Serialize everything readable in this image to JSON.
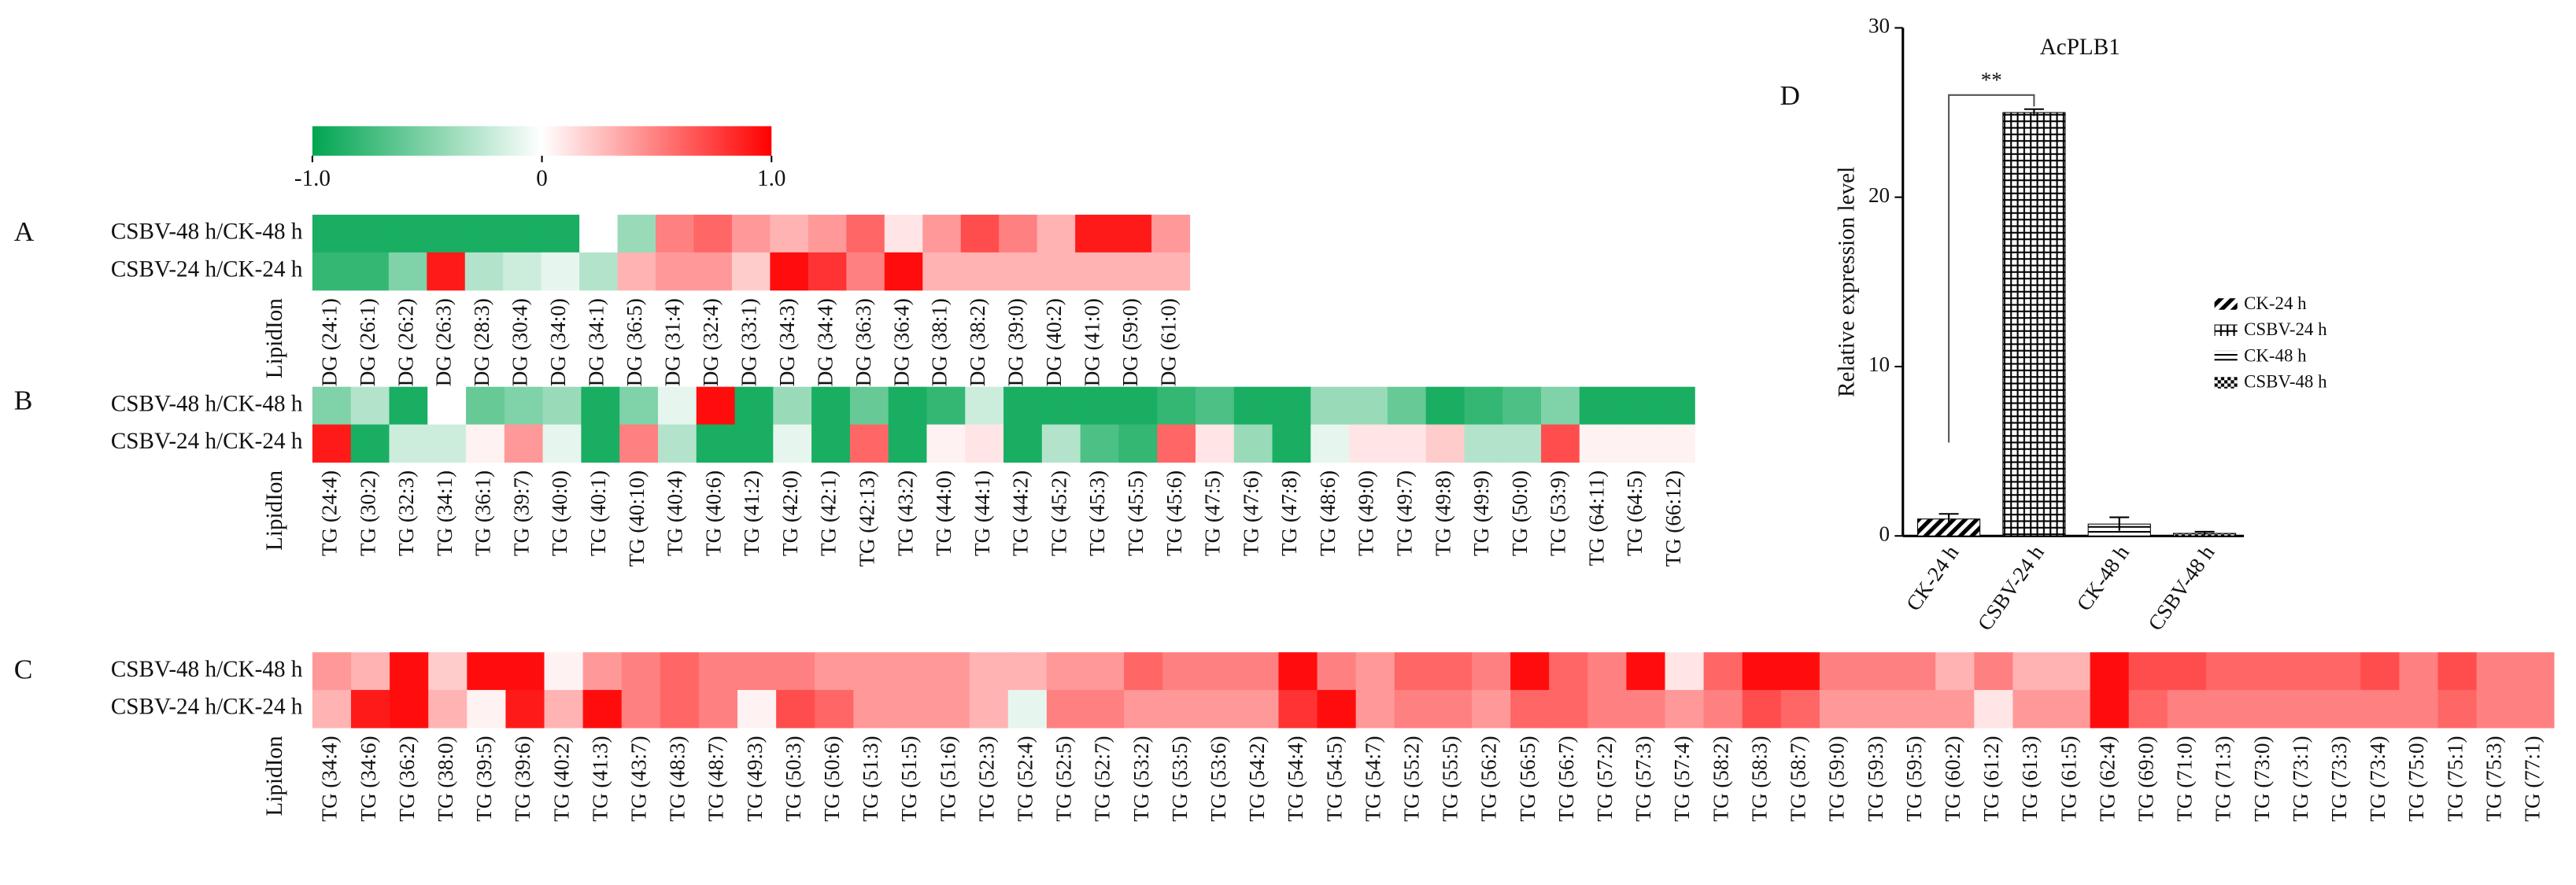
{
  "chart_data": [
    {
      "type": "heatmap",
      "panel": "A",
      "xlabel": "LipidIon",
      "rows": [
        "CSBV-48 h/CK-48 h",
        "CSBV-24 h/CK-24 h"
      ],
      "categories": [
        "DG (24:1)",
        "DG (26:1)",
        "DG (26:2)",
        "DG (26:3)",
        "DG (28:3)",
        "DG (30:4)",
        "DG (34:0)",
        "DG (34:1)",
        "DG (36:5)",
        "DG (31:4)",
        "DG (32:4)",
        "DG (33:1)",
        "DG (34:3)",
        "DG (34:4)",
        "DG (36:3)",
        "DG (36:4)",
        "DG (38:1)",
        "DG (38:2)",
        "DG (39:0)",
        "DG (40:2)",
        "DG (41:0)",
        "DG (59:0)",
        "DG (61:0)"
      ],
      "values": [
        [
          -0.9,
          -0.9,
          -0.9,
          -0.9,
          -0.9,
          -0.9,
          -0.9,
          0,
          -0.4,
          0.5,
          0.6,
          0.4,
          0.3,
          0.4,
          0.6,
          0.1,
          0.4,
          0.7,
          0.5,
          0.3,
          0.9,
          0.9,
          0.4
        ],
        [
          -0.8,
          -0.8,
          -0.5,
          0.9,
          -0.3,
          -0.2,
          -0.1,
          -0.3,
          0.3,
          0.4,
          0.4,
          0.2,
          0.95,
          0.8,
          0.5,
          0.95,
          0.3,
          0.3,
          0.3,
          0.3,
          0.3,
          0.3,
          0.3
        ]
      ],
      "colorbar": {
        "colors": [
          "#00a550",
          "#ffffff",
          "#ff0000"
        ],
        "lim": [
          -1,
          1
        ],
        "ticks": [
          {
            "value": -1,
            "label": "-1.0"
          },
          0,
          {
            "value": 1,
            "label": "1.0"
          }
        ]
      }
    },
    {
      "type": "heatmap",
      "panel": "B",
      "xlabel": "LipidIon",
      "rows": [
        "CSBV-48 h/CK-48 h",
        "CSBV-24 h/CK-24 h"
      ],
      "categories": [
        "TG (24:4)",
        "TG (30:2)",
        "TG (32:3)",
        "TG (34:1)",
        "TG (36:1)",
        "TG (39:7)",
        "TG (40:0)",
        "TG (40:1)",
        "TG (40:10)",
        "TG (40:4)",
        "TG (40:6)",
        "TG (41:2)",
        "TG (42:0)",
        "TG (42:1)",
        "TG (42:13)",
        "TG (43:2)",
        "TG (44:0)",
        "TG (44:1)",
        "TG (44:2)",
        "TG (45:2)",
        "TG (45:3)",
        "TG (45:5)",
        "TG (45:6)",
        "TG (47:5)",
        "TG (47:6)",
        "TG (47:8)",
        "TG (48:6)",
        "TG (49:0)",
        "TG (49:7)",
        "TG (49:8)",
        "TG (49:9)",
        "TG (50:0)",
        "TG (53:9)",
        "TG (64:11)",
        "TG (64:5)",
        "TG (66:12)"
      ],
      "values": [
        [
          -0.5,
          -0.3,
          -0.9,
          0,
          -0.6,
          -0.5,
          -0.4,
          -0.9,
          -0.5,
          -0.1,
          0.95,
          -0.9,
          -0.4,
          -0.9,
          -0.6,
          -0.9,
          -0.8,
          -0.2,
          -0.9,
          -0.9,
          -0.9,
          -0.9,
          -0.8,
          -0.7,
          -0.9,
          -0.9,
          -0.4,
          -0.4,
          -0.6,
          -0.9,
          -0.8,
          -0.7,
          -0.5,
          -0.9,
          -0.9,
          -0.9
        ],
        [
          0.9,
          -0.9,
          -0.2,
          -0.2,
          0.05,
          0.4,
          -0.1,
          -0.9,
          0.5,
          -0.3,
          -0.9,
          -0.9,
          -0.1,
          -0.9,
          0.6,
          -0.9,
          0.05,
          0.1,
          -0.9,
          -0.3,
          -0.7,
          -0.8,
          0.6,
          0.1,
          -0.4,
          -0.9,
          -0.1,
          0.1,
          0.1,
          0.2,
          -0.3,
          -0.3,
          0.7,
          0.05,
          0.05,
          0.05
        ]
      ]
    },
    {
      "type": "heatmap",
      "panel": "C",
      "xlabel": "LipidIon",
      "rows": [
        "CSBV-48 h/CK-48 h",
        "CSBV-24 h/CK-24 h"
      ],
      "categories": [
        "TG (34:4)",
        "TG (34:6)",
        "TG (36:2)",
        "TG (38:0)",
        "TG (39:5)",
        "TG (39:6)",
        "TG (40:2)",
        "TG (41:3)",
        "TG (43:7)",
        "TG (48:3)",
        "TG (48:7)",
        "TG (49:3)",
        "TG (50:3)",
        "TG (50:6)",
        "TG (51:3)",
        "TG (51:5)",
        "TG (51:6)",
        "TG (52:3)",
        "TG (52:4)",
        "TG (52:5)",
        "TG (52:7)",
        "TG (53:2)",
        "TG (53:5)",
        "TG (53:6)",
        "TG (54:2)",
        "TG (54:4)",
        "TG (54:5)",
        "TG (54:7)",
        "TG (55:2)",
        "TG (55:5)",
        "TG (56:2)",
        "TG (56:5)",
        "TG (56:7)",
        "TG (57:2)",
        "TG (57:3)",
        "TG (57:4)",
        "TG (58:2)",
        "TG (58:3)",
        "TG (58:7)",
        "TG (59:0)",
        "TG (59:3)",
        "TG (59:5)",
        "TG (60:2)",
        "TG (61:2)",
        "TG (61:3)",
        "TG (61:5)",
        "TG (62:4)",
        "TG (69:0)",
        "TG (71:0)",
        "TG (71:3)",
        "TG (73:0)",
        "TG (73:1)",
        "TG (73:3)",
        "TG (73:4)",
        "TG (75:0)",
        "TG (75:1)",
        "TG (75:3)",
        "TG (77:1)"
      ],
      "values": [
        [
          0.4,
          0.3,
          0.95,
          0.2,
          0.95,
          0.95,
          0.05,
          0.4,
          0.5,
          0.6,
          0.5,
          0.5,
          0.5,
          0.4,
          0.4,
          0.4,
          0.4,
          0.3,
          0.3,
          0.4,
          0.4,
          0.6,
          0.5,
          0.5,
          0.5,
          0.95,
          0.5,
          0.4,
          0.6,
          0.6,
          0.5,
          0.95,
          0.6,
          0.5,
          0.95,
          0.1,
          0.6,
          0.95,
          0.95,
          0.5,
          0.5,
          0.5,
          0.3,
          0.5,
          0.3,
          0.3,
          0.95,
          0.7,
          0.7,
          0.6,
          0.6,
          0.6,
          0.6,
          0.7,
          0.5,
          0.7,
          0.5,
          0.5
        ],
        [
          0.3,
          0.9,
          0.95,
          0.3,
          0.05,
          0.9,
          0.3,
          0.95,
          0.5,
          0.6,
          0.5,
          0.05,
          0.7,
          0.6,
          0.4,
          0.4,
          0.4,
          0.3,
          -0.1,
          0.5,
          0.5,
          0.4,
          0.4,
          0.4,
          0.4,
          0.8,
          0.95,
          0.4,
          0.5,
          0.5,
          0.4,
          0.6,
          0.6,
          0.5,
          0.5,
          0.4,
          0.5,
          0.7,
          0.6,
          0.4,
          0.4,
          0.4,
          0.4,
          0.1,
          0.4,
          0.4,
          0.95,
          0.6,
          0.5,
          0.5,
          0.5,
          0.5,
          0.5,
          0.5,
          0.5,
          0.6,
          0.5,
          0.5
        ]
      ]
    },
    {
      "type": "bar",
      "panel": "D",
      "title": "AcPLB1",
      "ylabel": "Relative expression level",
      "categories": [
        "CK-24 h",
        "CSBV-24 h",
        "CK-48 h",
        "CSBV-48 h"
      ],
      "values": [
        1.0,
        25,
        0.7,
        0.15
      ],
      "errors": [
        0.3,
        0.2,
        0.4,
        0.1
      ],
      "color": "#000000",
      "ylim": [
        0,
        30
      ],
      "yticks": [
        0,
        10,
        20,
        30
      ],
      "annotation": "**"
    }
  ]
}
